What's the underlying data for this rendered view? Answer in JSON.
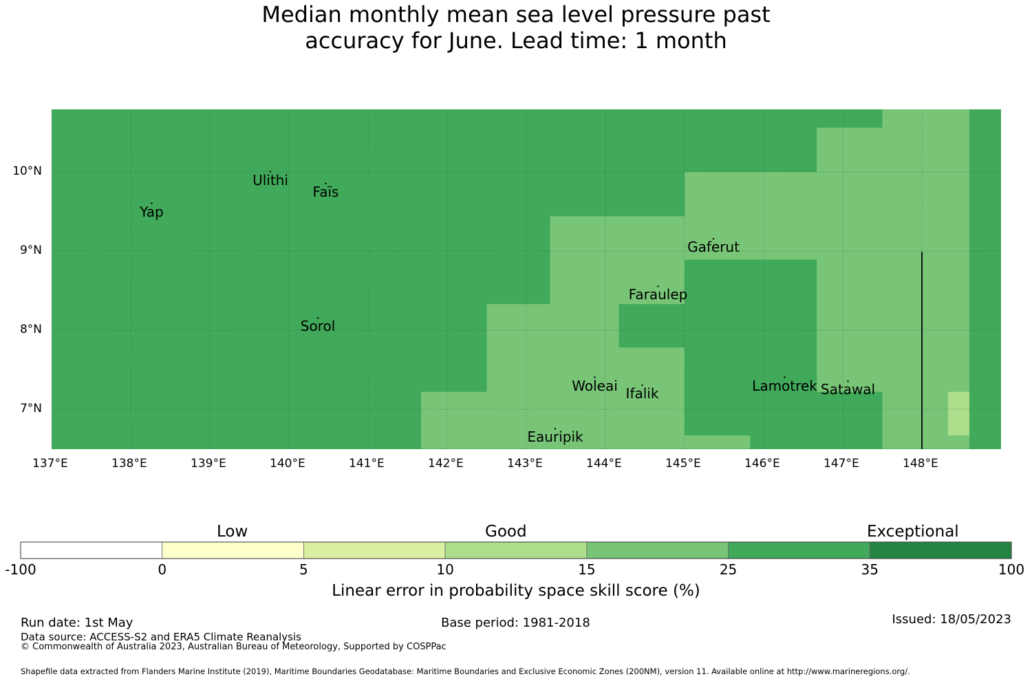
{
  "title": {
    "line1": "Median monthly mean sea level pressure past",
    "line2": "accuracy for June. Lead time: 1 month"
  },
  "map": {
    "lon_labels": [
      "137°E",
      "138°E",
      "139°E",
      "140°E",
      "141°E",
      "142°E",
      "143°E",
      "144°E",
      "145°E",
      "146°E",
      "147°E",
      "148°E"
    ],
    "lat_labels": [
      "10°N",
      "9°N",
      "8°N",
      "7°N"
    ],
    "places": [
      {
        "name": "Yap",
        "lon": 138.3,
        "lat": 9.5
      },
      {
        "name": "Ulithi",
        "lon": 139.8,
        "lat": 9.9
      },
      {
        "name": "Faïs",
        "lon": 140.5,
        "lat": 9.75
      },
      {
        "name": "Gaferut",
        "lon": 145.4,
        "lat": 9.05
      },
      {
        "name": "Faraulep",
        "lon": 144.7,
        "lat": 8.45
      },
      {
        "name": "Sorol",
        "lon": 140.4,
        "lat": 8.05
      },
      {
        "name": "Woleai",
        "lon": 143.9,
        "lat": 7.3
      },
      {
        "name": "Ifalik",
        "lon": 144.5,
        "lat": 7.2
      },
      {
        "name": "Lamotrek",
        "lon": 146.3,
        "lat": 7.3
      },
      {
        "name": "Satawal",
        "lon": 147.1,
        "lat": 7.25
      },
      {
        "name": "Eauripik",
        "lon": 143.4,
        "lat": 6.65
      }
    ],
    "cells": [
      {
        "lon": [
          137,
          148.6
        ],
        "lat": [
          6.5,
          10.8
        ],
        "c": "#41a95a"
      },
      {
        "lon": [
          141.67,
          142.5
        ],
        "lat": [
          6.5,
          7.22
        ],
        "c": "#78c578"
      },
      {
        "lon": [
          142.5,
          143.3
        ],
        "lat": [
          6.5,
          8.33
        ],
        "c": "#78c578"
      },
      {
        "lon": [
          143.3,
          145
        ],
        "lat": [
          6.5,
          9.44
        ],
        "c": "#78c578"
      },
      {
        "lon": [
          145,
          148.6
        ],
        "lat": [
          8.89,
          10.0
        ],
        "c": "#78c578"
      },
      {
        "lon": [
          146.67,
          148.6
        ],
        "lat": [
          6.5,
          10.56
        ],
        "c": "#78c578"
      },
      {
        "lon": [
          147.5,
          148.6
        ],
        "lat": [
          6.5,
          10.8
        ],
        "c": "#78c578"
      },
      {
        "lon": [
          145,
          146.67
        ],
        "lat": [
          6.67,
          8.89
        ],
        "c": "#41a95a"
      },
      {
        "lon": [
          146.67,
          147.5
        ],
        "lat": [
          6.5,
          7.22
        ],
        "c": "#41a95a"
      },
      {
        "lon": [
          144.17,
          145
        ],
        "lat": [
          7.78,
          8.33
        ],
        "c": "#41a95a"
      },
      {
        "lon": [
          145,
          145.83
        ],
        "lat": [
          6.5,
          6.67
        ],
        "c": "#78c578"
      },
      {
        "lon": [
          145.83,
          146.67
        ],
        "lat": [
          6.5,
          6.67
        ],
        "c": "#41a95a"
      },
      {
        "lon": [
          148.33,
          148.6
        ],
        "lat": [
          6.67,
          7.22
        ],
        "c": "#acde8c"
      }
    ]
  },
  "legend": {
    "categories": [
      "Low",
      "Good",
      "Exceptional"
    ],
    "ticks": [
      "-100",
      "0",
      "5",
      "10",
      "15",
      "25",
      "35",
      "100"
    ],
    "colors": [
      "#ffffff",
      "#ffffcc",
      "#dbefa1",
      "#acde8c",
      "#78c578",
      "#41a95a",
      "#238443"
    ],
    "label": "Linear error in probability space skill score (%)"
  },
  "footer": {
    "run_date": "Run date: 1st May",
    "base_period": "Base period: 1981-2018",
    "issued": "Issued: 18/05/2023",
    "data_source": "Data source: ACCESS-S2 and ERA5 Climate Reanalysis",
    "copyright": "© Commonwealth of Australia 2023, Australian Bureau of Meteorology, Supported by COSPPac",
    "shapefile": "Shapefile data extracted from Flanders Marine Institute (2019), Maritime Boundaries Geodatabase: Maritime Boundaries and Exclusive Economic Zones (200NM), version 11. Available online at http://www.marineregions.org/."
  }
}
